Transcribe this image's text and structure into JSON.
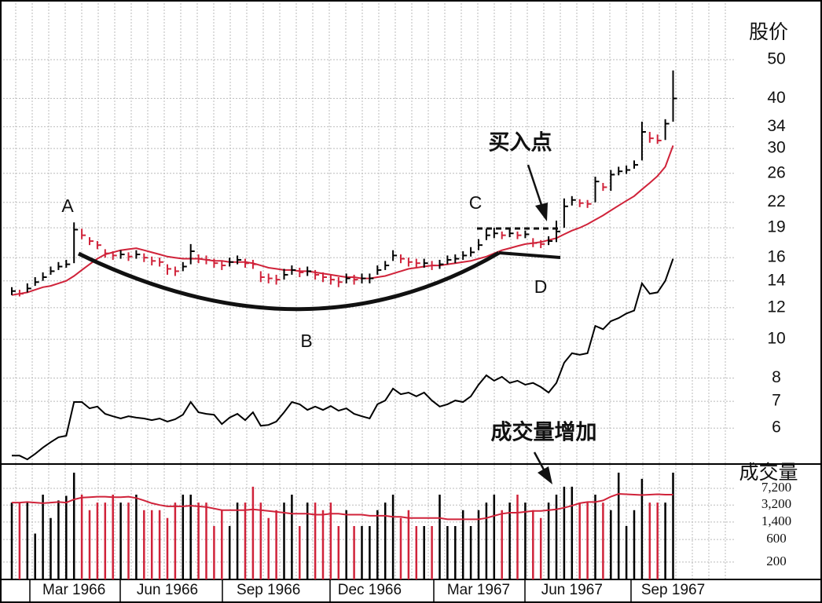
{
  "chart_data": {
    "type": "ohlc",
    "categories": [
      null,
      null,
      null,
      null,
      null,
      null,
      null,
      null,
      "Mar 1966",
      null,
      null,
      null,
      null,
      null,
      null,
      null,
      null,
      null,
      null,
      null,
      "Jun 1966",
      null,
      null,
      null,
      null,
      null,
      null,
      null,
      null,
      null,
      null,
      null,
      null,
      "Sep 1966",
      null,
      null,
      null,
      null,
      null,
      null,
      null,
      null,
      null,
      null,
      null,
      null,
      "Dec 1966",
      null,
      null,
      null,
      null,
      null,
      null,
      null,
      null,
      null,
      null,
      null,
      null,
      null,
      "Mar 1967",
      null,
      null,
      null,
      null,
      null,
      null,
      null,
      null,
      null,
      null,
      null,
      "Jun 1967",
      null,
      null,
      null,
      null,
      null,
      null,
      null,
      null,
      null,
      null,
      null,
      null,
      "Sep 1967"
    ],
    "price": {
      "title": "股价",
      "log": true,
      "grid": true,
      "ylim": [
        4.9,
        68
      ],
      "yticks": [
        6,
        7,
        8,
        10,
        12,
        14,
        16,
        19,
        22,
        26,
        30,
        34,
        40,
        50
      ],
      "up_color": "#000000",
      "down_color": "#d0233a",
      "high": [
        13.5,
        13.3,
        13.8,
        14.3,
        14.7,
        15.2,
        15.6,
        15.8,
        19.6,
        18.9,
        18.0,
        17.6,
        16.8,
        16.6,
        16.7,
        16.5,
        16.7,
        16.4,
        16.1,
        16.0,
        15.4,
        15.2,
        15.6,
        17.3,
        16.3,
        16.2,
        15.9,
        15.7,
        16.0,
        16.2,
        15.9,
        15.8,
        14.8,
        14.6,
        14.5,
        15.0,
        15.3,
        15.1,
        15.2,
        14.9,
        14.7,
        14.5,
        14.3,
        14.6,
        14.5,
        14.6,
        14.6,
        15.3,
        15.7,
        16.7,
        16.3,
        16.0,
        15.9,
        15.9,
        15.7,
        15.8,
        16.2,
        16.3,
        16.6,
        17.0,
        17.8,
        18.9,
        19.0,
        18.6,
        18.8,
        18.6,
        18.7,
        17.9,
        17.7,
        18.1,
        19.8,
        22.5,
        22.8,
        22.4,
        22.3,
        25.5,
        24.6,
        26.5,
        27.0,
        27.2,
        28.0,
        35.0,
        33.0,
        32.5,
        35.5,
        47.0
      ],
      "low": [
        12.9,
        12.8,
        13.1,
        13.6,
        14.0,
        14.5,
        14.9,
        15.1,
        15.5,
        17.8,
        17.2,
        16.8,
        16.0,
        15.8,
        15.9,
        15.7,
        15.9,
        15.6,
        15.3,
        15.2,
        14.5,
        14.4,
        14.8,
        15.4,
        15.5,
        15.4,
        15.1,
        14.9,
        15.2,
        15.4,
        15.1,
        15.0,
        13.9,
        13.8,
        13.7,
        14.1,
        14.5,
        14.3,
        14.4,
        14.1,
        13.9,
        13.7,
        13.5,
        13.8,
        13.7,
        13.8,
        13.8,
        14.5,
        14.9,
        15.7,
        15.5,
        15.2,
        15.1,
        15.1,
        14.9,
        15.0,
        15.4,
        15.5,
        15.8,
        16.1,
        16.7,
        17.7,
        17.9,
        17.8,
        18.0,
        17.8,
        17.9,
        17.0,
        16.9,
        17.2,
        17.5,
        19.0,
        21.6,
        21.4,
        21.3,
        22.0,
        23.5,
        23.5,
        25.7,
        25.9,
        26.7,
        28.0,
        31.0,
        30.8,
        31.5,
        35.0
      ],
      "close": [
        13.2,
        13.0,
        13.4,
        13.9,
        14.3,
        14.8,
        15.2,
        15.4,
        18.8,
        18.2,
        17.6,
        17.2,
        16.4,
        16.2,
        16.3,
        16.1,
        16.3,
        16.0,
        15.7,
        15.6,
        15.0,
        14.8,
        15.2,
        16.6,
        15.9,
        15.8,
        15.5,
        15.3,
        15.6,
        15.8,
        15.5,
        15.4,
        14.3,
        14.2,
        14.1,
        14.5,
        14.9,
        14.7,
        14.8,
        14.5,
        14.3,
        14.1,
        13.9,
        14.2,
        14.1,
        14.2,
        14.2,
        14.9,
        15.3,
        16.2,
        15.9,
        15.6,
        15.5,
        15.5,
        15.3,
        15.4,
        15.8,
        15.9,
        16.2,
        16.5,
        17.2,
        18.2,
        18.4,
        18.2,
        18.4,
        18.2,
        18.3,
        17.4,
        17.3,
        17.6,
        18.6,
        21.5,
        22.3,
        21.9,
        21.8,
        24.8,
        24.0,
        25.8,
        26.3,
        26.5,
        27.3,
        33.0,
        31.8,
        31.4,
        34.6,
        40.0
      ],
      "moving_average": {
        "color": "#d0233a",
        "values": [
          12.9,
          13.0,
          13.1,
          13.3,
          13.5,
          13.6,
          13.8,
          14.0,
          14.4,
          14.9,
          15.4,
          15.9,
          16.3,
          16.5,
          16.7,
          16.8,
          16.9,
          16.7,
          16.5,
          16.3,
          16.1,
          16.0,
          15.9,
          15.9,
          15.9,
          15.8,
          15.7,
          15.7,
          15.6,
          15.6,
          15.6,
          15.5,
          15.3,
          15.1,
          15.0,
          14.9,
          14.9,
          14.8,
          14.8,
          14.7,
          14.6,
          14.5,
          14.4,
          14.3,
          14.3,
          14.2,
          14.2,
          14.3,
          14.4,
          14.6,
          14.8,
          15.0,
          15.1,
          15.2,
          15.3,
          15.3,
          15.4,
          15.5,
          15.6,
          15.7,
          15.9,
          16.1,
          16.4,
          16.7,
          16.9,
          17.1,
          17.3,
          17.4,
          17.5,
          17.7,
          17.9,
          18.3,
          18.7,
          19.0,
          19.4,
          19.9,
          20.4,
          21.0,
          21.6,
          22.2,
          22.8,
          23.7,
          24.6,
          25.6,
          27.0,
          30.5
        ]
      },
      "relative_strength": {
        "color": "#000000",
        "values": [
          5.12,
          5.12,
          5.01,
          5.17,
          5.36,
          5.53,
          5.69,
          5.74,
          6.97,
          6.97,
          6.72,
          6.79,
          6.51,
          6.42,
          6.34,
          6.42,
          6.37,
          6.34,
          6.28,
          6.34,
          6.23,
          6.31,
          6.48,
          6.97,
          6.57,
          6.51,
          6.48,
          6.14,
          6.37,
          6.51,
          6.28,
          6.57,
          6.08,
          6.11,
          6.23,
          6.57,
          6.97,
          6.88,
          6.66,
          6.79,
          6.66,
          6.81,
          6.63,
          6.72,
          6.51,
          6.42,
          6.34,
          6.88,
          7.03,
          7.53,
          7.29,
          7.36,
          7.2,
          7.36,
          7.03,
          6.79,
          6.88,
          7.03,
          6.97,
          7.2,
          7.7,
          8.13,
          7.88,
          8.06,
          7.78,
          7.88,
          7.7,
          7.78,
          7.6,
          7.36,
          7.78,
          8.74,
          9.23,
          9.15,
          9.23,
          10.8,
          10.6,
          11.1,
          11.3,
          11.6,
          11.8,
          13.8,
          13.0,
          13.1,
          14.0,
          15.9
        ]
      }
    },
    "volume": {
      "title": "成交量",
      "log": true,
      "ylim": [
        86,
        22600
      ],
      "yticks": [
        {
          "value": 7200,
          "label": "7,200"
        },
        {
          "value": 3200,
          "label": "3,200"
        },
        {
          "value": 1400,
          "label": "1,400"
        },
        600,
        200
      ],
      "values": [
        3600,
        3600,
        3600,
        800,
        5300,
        1700,
        4000,
        5000,
        15400,
        5300,
        2500,
        3600,
        3600,
        5300,
        3600,
        3600,
        5300,
        2500,
        2500,
        2500,
        1700,
        3600,
        5300,
        5300,
        3600,
        3600,
        1150,
        2500,
        1150,
        3600,
        3600,
        7800,
        3600,
        1700,
        2500,
        3600,
        5300,
        1150,
        3600,
        3600,
        2500,
        3600,
        1150,
        2500,
        1150,
        1150,
        1150,
        2500,
        3600,
        5300,
        1700,
        2500,
        1150,
        1150,
        1150,
        5300,
        1150,
        1150,
        2500,
        1150,
        2500,
        3600,
        5300,
        2500,
        3600,
        5300,
        3600,
        2500,
        1700,
        3600,
        5300,
        7800,
        7800,
        3600,
        3600,
        5300,
        3600,
        2500,
        15400,
        1150,
        2500,
        11400,
        3600,
        3600,
        3600,
        15400
      ],
      "moving_average": {
        "color": "#d0233a",
        "values": [
          3600,
          3600,
          3700,
          3600,
          3500,
          3600,
          3700,
          3600,
          4200,
          4600,
          4700,
          4800,
          4800,
          4700,
          4700,
          4800,
          4500,
          4000,
          3500,
          3200,
          3000,
          3000,
          3000,
          3100,
          3000,
          2900,
          2700,
          2500,
          2500,
          2500,
          2500,
          2600,
          2500,
          2400,
          2300,
          2200,
          2100,
          2100,
          2100,
          2000,
          2000,
          2100,
          2100,
          2000,
          2000,
          2000,
          1900,
          1900,
          1900,
          1800,
          1800,
          1700,
          1700,
          1700,
          1700,
          1700,
          1600,
          1600,
          1600,
          1600,
          1600,
          1700,
          1900,
          2100,
          2200,
          2200,
          2300,
          2400,
          2400,
          2500,
          2600,
          2800,
          3100,
          3500,
          3700,
          3700,
          4000,
          4800,
          5500,
          5400,
          5300,
          5200,
          5300,
          5400,
          5300,
          5300
        ]
      }
    },
    "annotations": [
      "A",
      "B",
      "C",
      "D",
      "买入点",
      "成交量增加"
    ]
  }
}
